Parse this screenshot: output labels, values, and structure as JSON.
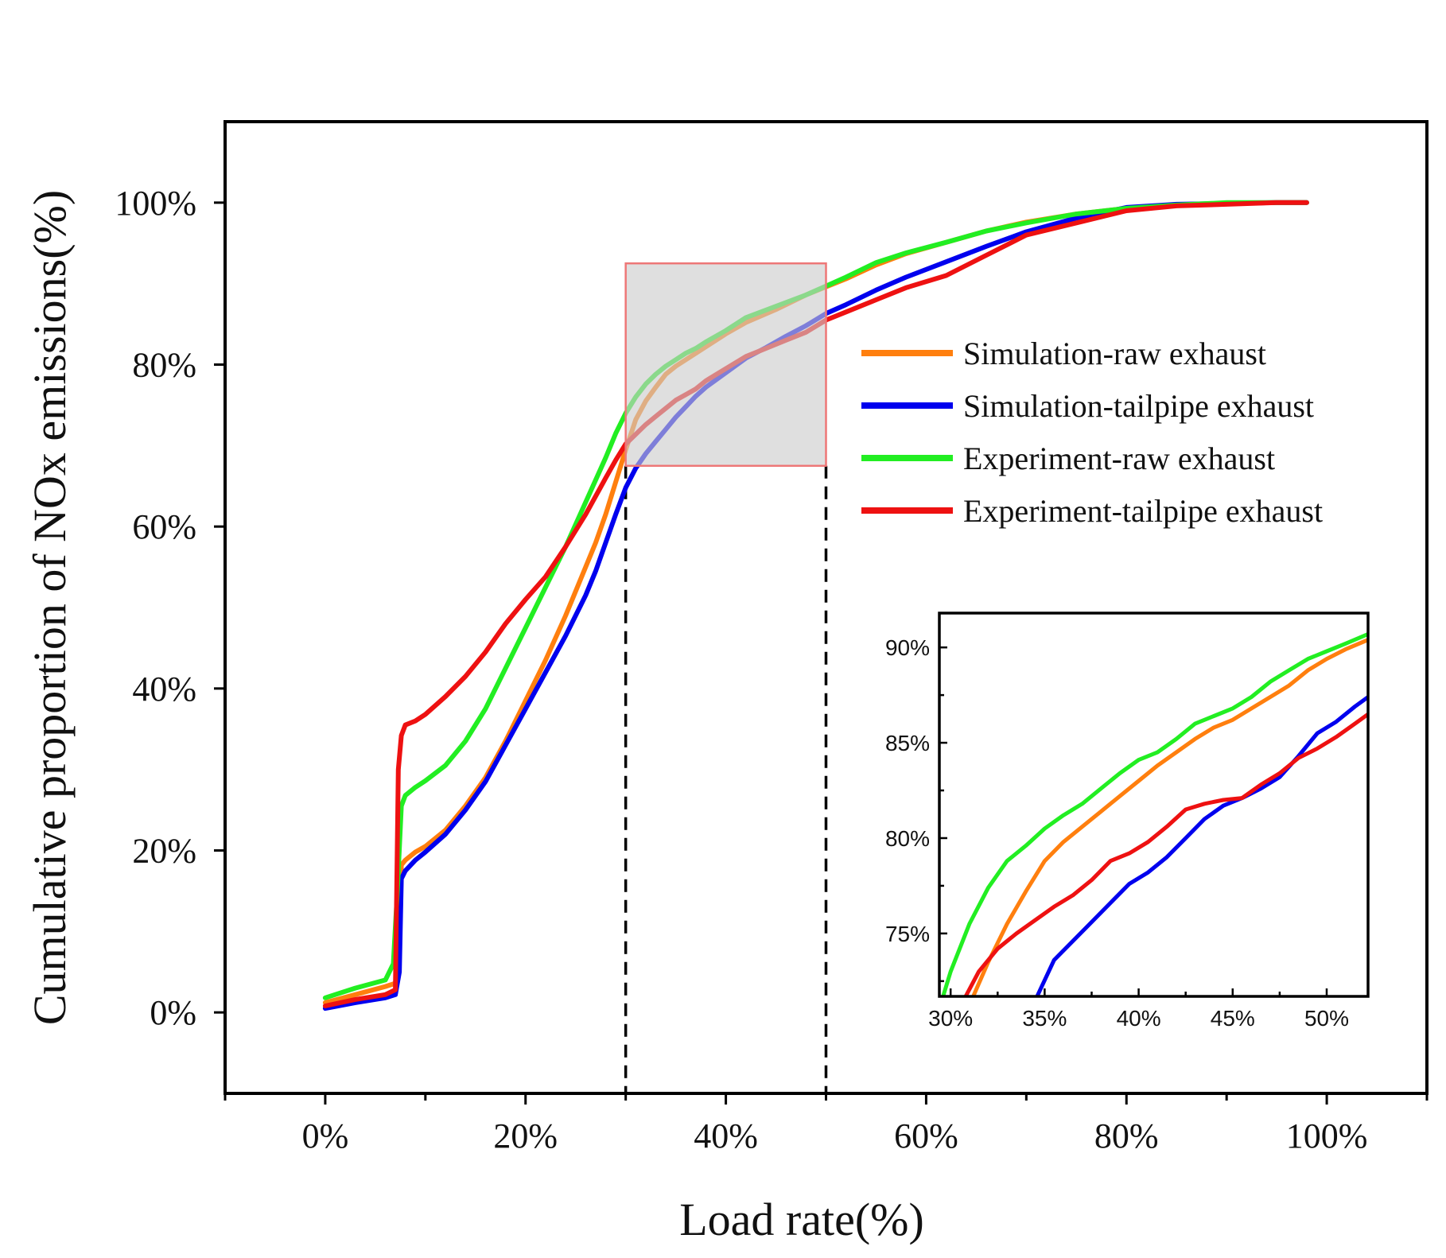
{
  "chart_data": [
    {
      "type": "line",
      "id": "main",
      "xlabel": "Load rate(%)",
      "ylabel": "Cumulative proportion of NOx emissions(%)",
      "xlim": [
        -10,
        110
      ],
      "ylim": [
        -10,
        110
      ],
      "xticks": [
        0,
        20,
        40,
        60,
        80,
        100
      ],
      "xtick_labels": [
        "0%",
        "20%",
        "40%",
        "60%",
        "80%",
        "100%"
      ],
      "yticks": [
        0,
        20,
        40,
        60,
        80,
        100
      ],
      "ytick_labels": [
        "0%",
        "20%",
        "40%",
        "60%",
        "80%",
        "100%"
      ],
      "grid": false,
      "legend_position": "right",
      "series": [
        {
          "name": "Simulation-raw exhaust",
          "color": "#ff7f0e",
          "x": [
            0,
            3,
            6,
            7,
            7.4,
            7.6,
            8,
            9,
            10,
            12,
            14,
            16,
            18,
            20,
            22,
            24,
            26,
            27,
            28,
            29,
            30,
            31,
            32,
            33,
            34,
            35,
            36,
            37,
            38,
            40,
            42,
            45,
            48,
            50,
            52,
            55,
            58,
            62,
            66,
            70,
            75,
            80,
            85,
            90,
            95,
            98
          ],
          "y": [
            1.2,
            2.2,
            3.2,
            3.6,
            8,
            18.2,
            18.8,
            19.8,
            20.5,
            22.5,
            25.5,
            29,
            33.5,
            38.5,
            43.5,
            49,
            55,
            58,
            61.5,
            65.5,
            69.5,
            73.2,
            75.5,
            77.2,
            78.8,
            79.8,
            80.6,
            81.4,
            82.2,
            83.8,
            85.2,
            86.8,
            88.6,
            89.6,
            90.6,
            92.3,
            93.7,
            95.1,
            96.5,
            97.6,
            98.6,
            99.3,
            99.7,
            99.9,
            100,
            100
          ]
        },
        {
          "name": "Simulation-tailpipe exhaust",
          "color": "#0000ee",
          "x": [
            0,
            3,
            6,
            7,
            7.4,
            7.6,
            8,
            9,
            10,
            12,
            14,
            16,
            18,
            20,
            22,
            24,
            26,
            27,
            28,
            29,
            30,
            31,
            32,
            33,
            34,
            35,
            36,
            37,
            38,
            40,
            42,
            44,
            46,
            48,
            50,
            52,
            55,
            58,
            62,
            66,
            70,
            75,
            80,
            85,
            90,
            95,
            98
          ],
          "y": [
            0.5,
            1.2,
            1.8,
            2.2,
            5,
            16.5,
            17.5,
            18.8,
            19.8,
            22,
            25,
            28.5,
            33,
            37.5,
            42,
            46.5,
            51.5,
            54.5,
            58,
            61.5,
            64.8,
            67.2,
            69,
            70.5,
            72,
            73.5,
            74.8,
            76.1,
            77.2,
            79,
            80.8,
            82.1,
            83.5,
            84.8,
            86.3,
            87.4,
            89.2,
            90.8,
            92.7,
            94.6,
            96.4,
            98.1,
            99.4,
            99.8,
            99.9,
            100,
            100
          ]
        },
        {
          "name": "Experiment-raw exhaust",
          "color": "#22ee22",
          "x": [
            0,
            3,
            6,
            6.8,
            7.2,
            7.6,
            8,
            9,
            10,
            12,
            14,
            16,
            18,
            20,
            22,
            24,
            26,
            28,
            29,
            30,
            31,
            32,
            33,
            34,
            35,
            36,
            37,
            38,
            40,
            42,
            45,
            48,
            50,
            52,
            55,
            58,
            62,
            66,
            70,
            75,
            80,
            85,
            90,
            95,
            98
          ],
          "y": [
            1.8,
            3,
            4,
            6,
            15,
            25.5,
            26.8,
            27.8,
            28.6,
            30.5,
            33.5,
            37.5,
            42.5,
            47.5,
            52.5,
            57.5,
            63,
            68.5,
            71.5,
            74,
            76,
            77.6,
            78.8,
            79.8,
            80.6,
            81.4,
            82,
            82.8,
            84.2,
            85.8,
            87.2,
            88.6,
            89.7,
            90.8,
            92.6,
            93.8,
            95.1,
            96.5,
            97.5,
            98.6,
            99.3,
            99.7,
            100,
            100,
            100
          ]
        },
        {
          "name": "Experiment-tailpipe exhaust",
          "color": "#ee1111",
          "x": [
            0,
            3,
            6,
            7,
            7.3,
            7.6,
            8,
            9,
            10,
            12,
            14,
            16,
            18,
            20,
            22,
            24,
            26,
            28,
            29,
            30,
            31,
            32,
            33,
            34,
            35,
            36,
            37,
            38,
            40,
            42,
            44,
            46,
            48,
            50,
            52,
            55,
            58,
            62,
            66,
            70,
            75,
            80,
            85,
            90,
            95,
            98
          ],
          "y": [
            0.8,
            1.6,
            2.2,
            2.8,
            30,
            34.2,
            35.5,
            36,
            36.8,
            39,
            41.5,
            44.5,
            48,
            51,
            53.8,
            57.5,
            61.5,
            66,
            68.2,
            70.2,
            71.4,
            72.6,
            73.6,
            74.6,
            75.6,
            76.3,
            77,
            78,
            79.5,
            81,
            82,
            83,
            84,
            85.5,
            86.5,
            88,
            89.5,
            91,
            93.5,
            96,
            97.5,
            99,
            99.6,
            99.8,
            100,
            100
          ]
        }
      ],
      "annotations": {
        "highlight_box_x": [
          30,
          50
        ],
        "highlight_box_y": [
          67.5,
          92.5
        ],
        "dashed_lines_x": [
          30,
          50
        ],
        "box_fill_color": "#cccccc",
        "box_stroke_color": "#ee7777"
      }
    },
    {
      "type": "line",
      "id": "inset",
      "xlim": [
        29.4,
        52.2
      ],
      "ylim": [
        71.7,
        91.8
      ],
      "xticks": [
        30,
        35,
        40,
        45,
        50
      ],
      "xtick_labels": [
        "30%",
        "35%",
        "40%",
        "45%",
        "50%"
      ],
      "yticks": [
        75,
        80,
        85,
        90
      ],
      "ytick_labels": [
        "75%",
        "80%",
        "85%",
        "90%"
      ],
      "series": [
        {
          "name": "Simulation-raw exhaust",
          "color": "#ff7f0e",
          "x": [
            31.2,
            32,
            33,
            34,
            35,
            36,
            37,
            38,
            39,
            40,
            41,
            42,
            43,
            44,
            45,
            46,
            47,
            48,
            49,
            50,
            51,
            52.2
          ],
          "y": [
            71.7,
            73.5,
            75.5,
            77.2,
            78.8,
            79.8,
            80.6,
            81.4,
            82.2,
            83,
            83.8,
            84.5,
            85.2,
            85.8,
            86.2,
            86.8,
            87.4,
            88,
            88.8,
            89.4,
            89.9,
            90.4
          ]
        },
        {
          "name": "Simulation-tailpipe exhaust",
          "color": "#0000ee",
          "x": [
            34.6,
            35.5,
            36.5,
            37.5,
            38.5,
            39.5,
            40.5,
            41.5,
            42.5,
            43.5,
            44.5,
            45.5,
            46.5,
            47.5,
            48.5,
            49.5,
            50.5,
            51.5,
            52.2
          ],
          "y": [
            71.7,
            73.6,
            74.6,
            75.6,
            76.6,
            77.6,
            78.2,
            79,
            80,
            81,
            81.7,
            82.1,
            82.6,
            83.2,
            84.3,
            85.5,
            86.1,
            86.9,
            87.4
          ]
        },
        {
          "name": "Experiment-raw exhaust",
          "color": "#22ee22",
          "x": [
            29.6,
            30,
            31,
            32,
            33,
            34,
            35,
            36,
            37,
            38,
            39,
            40,
            41,
            42,
            43,
            44,
            45,
            46,
            47,
            48,
            49,
            50,
            51,
            52.2
          ],
          "y": [
            71.7,
            73,
            75.5,
            77.4,
            78.8,
            79.6,
            80.5,
            81.2,
            81.8,
            82.6,
            83.4,
            84.1,
            84.5,
            85.2,
            86,
            86.4,
            86.8,
            87.4,
            88.2,
            88.8,
            89.4,
            89.8,
            90.2,
            90.7
          ]
        },
        {
          "name": "Experiment-tailpipe exhaust",
          "color": "#ee1111",
          "x": [
            30.8,
            31.5,
            32.5,
            33.5,
            34.5,
            35.5,
            36.5,
            37.5,
            38.5,
            39.5,
            40.5,
            41.5,
            42.5,
            43.5,
            44.5,
            45.5,
            46.5,
            47.5,
            48.5,
            49.5,
            50.5,
            51.5,
            52.2
          ],
          "y": [
            71.7,
            73,
            74.2,
            75,
            75.7,
            76.4,
            77,
            77.8,
            78.8,
            79.2,
            79.8,
            80.6,
            81.5,
            81.8,
            82,
            82.1,
            82.8,
            83.4,
            84.2,
            84.7,
            85.3,
            86,
            86.5
          ]
        }
      ]
    }
  ]
}
